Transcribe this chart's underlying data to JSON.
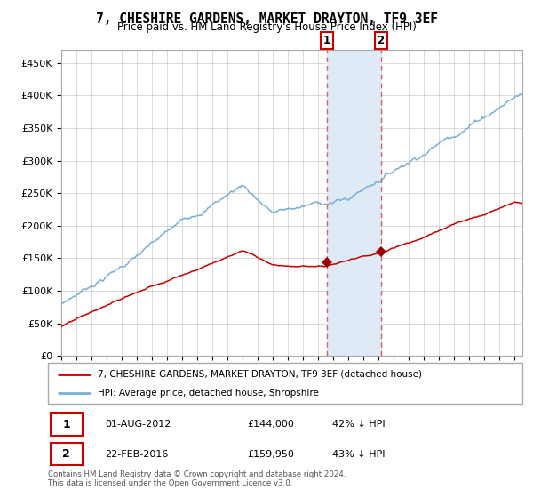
{
  "title": "7, CHESHIRE GARDENS, MARKET DRAYTON, TF9 3EF",
  "subtitle": "Price paid vs. HM Land Registry's House Price Index (HPI)",
  "legend_line1": "7, CHESHIRE GARDENS, MARKET DRAYTON, TF9 3EF (detached house)",
  "legend_line2": "HPI: Average price, detached house, Shropshire",
  "transaction1_date": "01-AUG-2012",
  "transaction1_price": "£144,000",
  "transaction1_hpi": "42% ↓ HPI",
  "transaction1_year": 2012.58,
  "transaction1_value": 144000,
  "transaction2_date": "22-FEB-2016",
  "transaction2_price": "£159,950",
  "transaction2_hpi": "43% ↓ HPI",
  "transaction2_year": 2016.13,
  "transaction2_value": 159950,
  "footer": "Contains HM Land Registry data © Crown copyright and database right 2024.\nThis data is licensed under the Open Government Licence v3.0.",
  "hpi_color": "#7bafd4",
  "price_color": "#cc0000",
  "marker_color": "#990000",
  "shaded_color": "#deeaf5",
  "vline_color": "#e06060",
  "grid_color": "#cccccc",
  "background_color": "#ffffff",
  "ylim_max": 470000,
  "xlim_start": 1995,
  "xlim_end": 2025.5
}
